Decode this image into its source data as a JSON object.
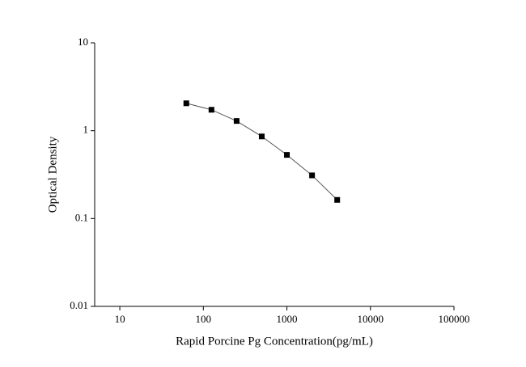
{
  "chart_data": {
    "type": "line",
    "x_label": "Rapid Porcine Pg Concentration(pg/mL)",
    "y_label": "Optical Density",
    "x": [
      62.5,
      125,
      250,
      500,
      1000,
      2000,
      4000
    ],
    "series": [
      {
        "color": "#000000",
        "values": [
          2.05,
          1.73,
          1.29,
          0.86,
          0.53,
          0.31,
          0.163
        ]
      }
    ],
    "xlim": [
      5,
      100000
    ],
    "xticks": [
      10,
      100,
      1000,
      10000,
      100000
    ],
    "ylim": [
      0.01,
      10
    ],
    "yticks": [
      0.01,
      0.1,
      1,
      10
    ],
    "xscale": "log",
    "yscale": "log",
    "grid": false,
    "line_color": "#555555"
  }
}
